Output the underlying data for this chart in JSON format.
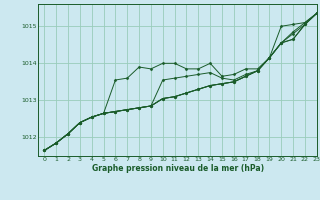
{
  "xlabel": "Graphe pression niveau de la mer (hPa)",
  "bg_color": "#cce8f0",
  "grid_color": "#99ccbb",
  "line_color": "#1a5c2a",
  "xlim": [
    -0.5,
    23
  ],
  "ylim": [
    1011.5,
    1015.6
  ],
  "yticks": [
    1012,
    1013,
    1014,
    1015
  ],
  "xticks": [
    0,
    1,
    2,
    3,
    4,
    5,
    6,
    7,
    8,
    9,
    10,
    11,
    12,
    13,
    14,
    15,
    16,
    17,
    18,
    19,
    20,
    21,
    22,
    23
  ],
  "series": [
    [
      1011.65,
      1011.85,
      1012.1,
      1012.4,
      1012.55,
      1012.65,
      1013.55,
      1013.6,
      1013.9,
      1013.85,
      1014.0,
      1014.0,
      1013.85,
      1013.85,
      1014.0,
      1013.65,
      1013.7,
      1013.85,
      1013.85,
      1014.15,
      1015.0,
      1015.05,
      1015.1,
      1015.35
    ],
    [
      1011.65,
      1011.85,
      1012.1,
      1012.4,
      1012.55,
      1012.65,
      1012.7,
      1012.75,
      1012.8,
      1012.85,
      1013.55,
      1013.6,
      1013.65,
      1013.7,
      1013.75,
      1013.6,
      1013.55,
      1013.7,
      1013.8,
      1014.15,
      1014.55,
      1014.65,
      1015.05,
      1015.35
    ],
    [
      1011.65,
      1011.85,
      1012.1,
      1012.4,
      1012.55,
      1012.65,
      1012.7,
      1012.75,
      1012.8,
      1012.85,
      1013.05,
      1013.1,
      1013.2,
      1013.3,
      1013.4,
      1013.45,
      1013.5,
      1013.65,
      1013.8,
      1014.15,
      1014.55,
      1014.65,
      1015.05,
      1015.35
    ],
    [
      1011.65,
      1011.85,
      1012.1,
      1012.4,
      1012.55,
      1012.65,
      1012.7,
      1012.75,
      1012.8,
      1012.85,
      1013.05,
      1013.1,
      1013.2,
      1013.3,
      1013.4,
      1013.45,
      1013.5,
      1013.65,
      1013.8,
      1014.15,
      1014.55,
      1014.8,
      1015.05,
      1015.35
    ],
    [
      1011.65,
      1011.85,
      1012.1,
      1012.4,
      1012.55,
      1012.65,
      1012.7,
      1012.75,
      1012.8,
      1012.85,
      1013.05,
      1013.1,
      1013.2,
      1013.3,
      1013.4,
      1013.45,
      1013.5,
      1013.65,
      1013.8,
      1014.15,
      1014.55,
      1014.85,
      1015.1,
      1015.35
    ]
  ]
}
